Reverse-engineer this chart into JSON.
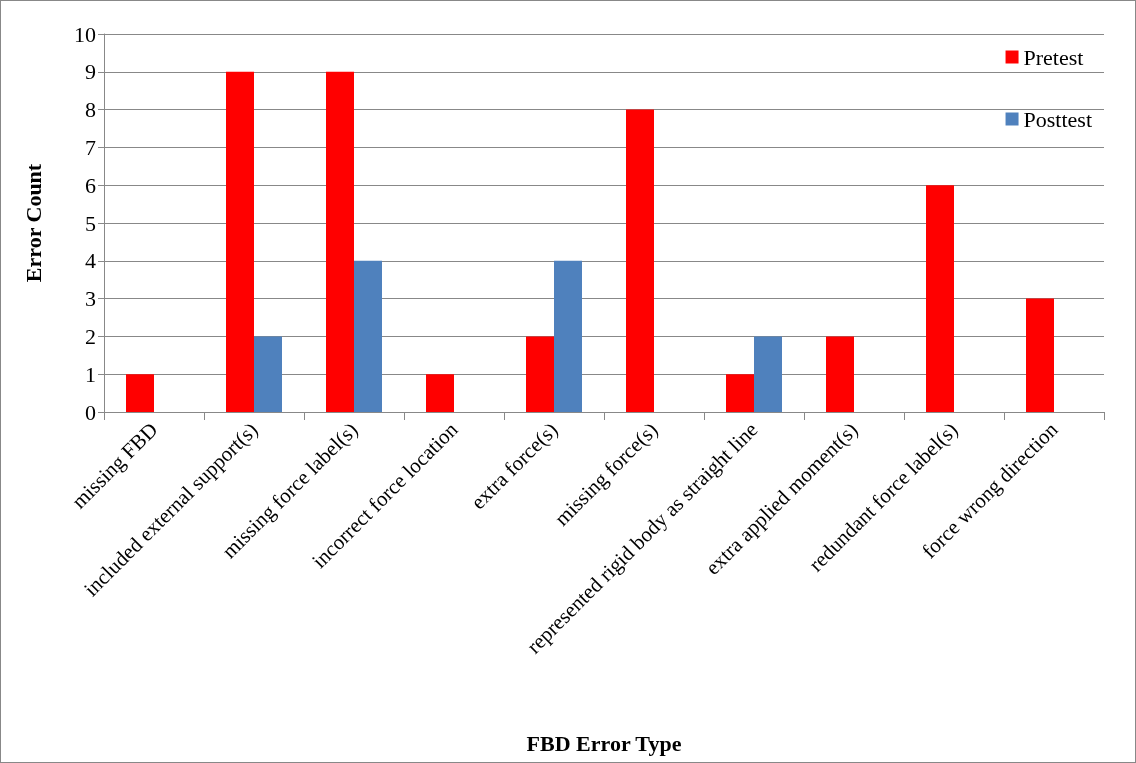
{
  "chart_data": {
    "type": "bar",
    "xlabel": "FBD Error Type",
    "ylabel": "Error Count",
    "categories": [
      "missing FBD",
      "included external support(s)",
      "missing force label(s)",
      "incorrect force location",
      "extra force(s)",
      "missing force(s)",
      "represented rigid body as straight line",
      "extra applied moment(s)",
      "redundant force label(s)",
      "force wrong direction"
    ],
    "series": [
      {
        "name": "Pretest",
        "color": "#ff0000",
        "values": [
          1,
          9,
          9,
          1,
          2,
          8,
          1,
          2,
          6,
          3
        ]
      },
      {
        "name": "Posttest",
        "color": "#4f81bd",
        "values": [
          0,
          2,
          4,
          0,
          4,
          0,
          2,
          0,
          0,
          0
        ]
      }
    ],
    "ylim": [
      0,
      10
    ],
    "yticks": [
      0,
      1,
      2,
      3,
      4,
      5,
      6,
      7,
      8,
      9,
      10
    ],
    "grid": "y",
    "legend": "top right"
  }
}
